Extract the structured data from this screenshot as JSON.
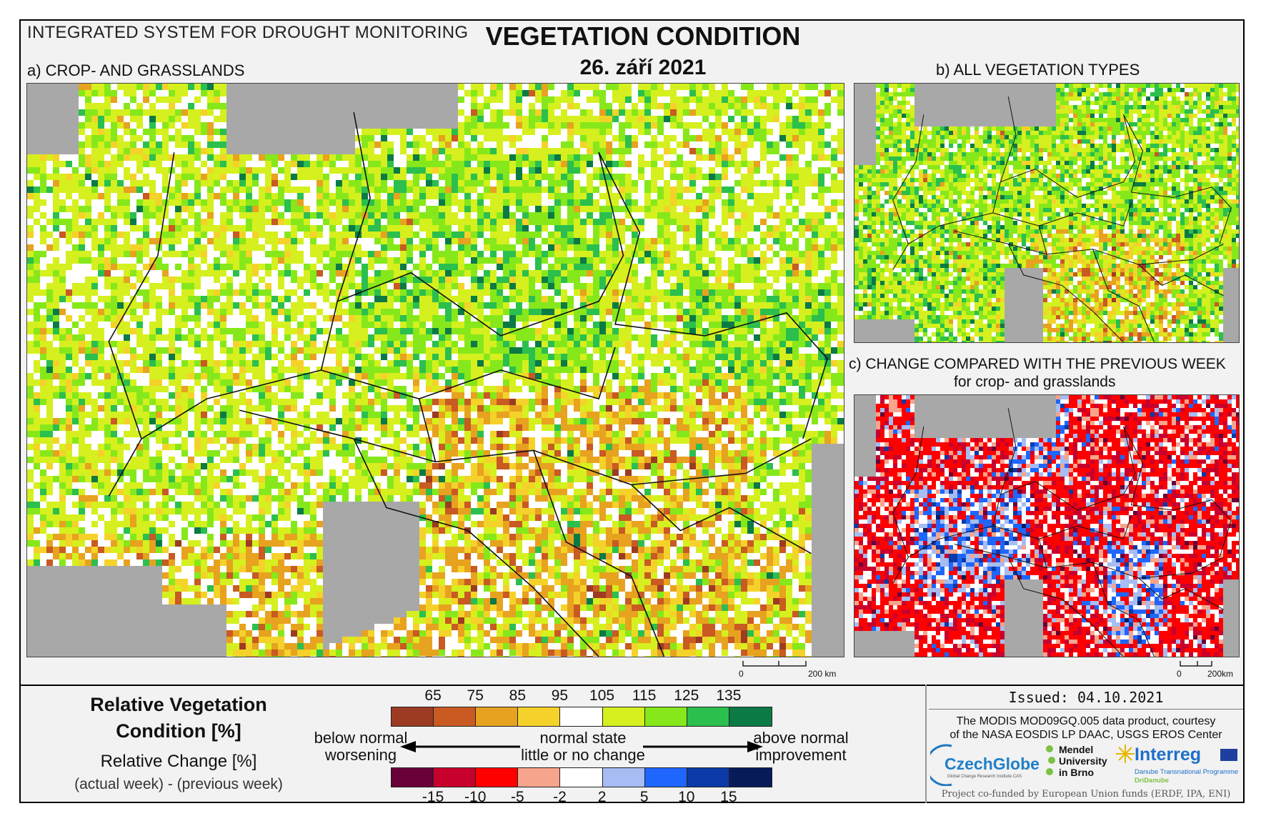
{
  "header": {
    "system_title": "INTEGRATED SYSTEM FOR DROUGHT MONITORING",
    "title": "VEGETATION CONDITION",
    "date": "26. září 2021"
  },
  "panels": {
    "a_label": "a) CROP- AND GRASSLANDS",
    "b_label": "b) ALL VEGETATION TYPES",
    "c_label": "c) CHANGE COMPARED WITH THE PREVIOUS WEEK",
    "c_sublabel": "for crop- and grasslands"
  },
  "scalebars": {
    "main": {
      "zero": "0",
      "end": "200 km"
    },
    "small": {
      "zero": "0",
      "end": "200km"
    }
  },
  "legend": {
    "title": "Relative Vegetation Condition [%]",
    "change_title": "Relative Change [%]",
    "change_sub": "(actual week) - (previous week)",
    "condition_colors": [
      "#9c3b22",
      "#c85a22",
      "#e7a21f",
      "#f5d229",
      "#ffffff",
      "#d5f01e",
      "#86e81a",
      "#2bbf4e",
      "#0b7a45"
    ],
    "condition_ticks": [
      "65",
      "75",
      "85",
      "95",
      "105",
      "115",
      "125",
      "135"
    ],
    "change_colors": [
      "#6a0038",
      "#c8002e",
      "#ff0000",
      "#f6a48c",
      "#ffffff",
      "#a6bcf2",
      "#1f66ff",
      "#0b3aa8",
      "#071a5a"
    ],
    "change_ticks": [
      "-15",
      "-10",
      "-5",
      "-2",
      "2",
      "5",
      "10",
      "15"
    ],
    "left_text_1": "below normal",
    "left_text_2": "worsening",
    "center_text_1": "normal state",
    "center_text_2": "little or no change",
    "right_text_1": "above normal",
    "right_text_2": "improvement"
  },
  "info": {
    "issued": "Issued: 04.10.2021",
    "courtesy_1": "The MODIS MOD09GQ.005 data product, courtesy",
    "courtesy_2": "of the NASA EOSDIS LP DAAC, USGS EROS Center",
    "czechglobe": "CzechGlobe",
    "czechglobe_sub": "Global Change Research Institute CAS",
    "mendel_1": "Mendel",
    "mendel_2": "University",
    "mendel_3": "in Brno",
    "interreg": "Interreg",
    "interreg_sub1": "Danube Transnational Programme",
    "interreg_sub2": "DriDanube",
    "cofunded": "Project co-funded by European Union funds (ERDF, IPA, ENI)"
  },
  "colors": {
    "frame_bg": "#f2f2f2",
    "sea_gray": "#a8a8a8"
  }
}
